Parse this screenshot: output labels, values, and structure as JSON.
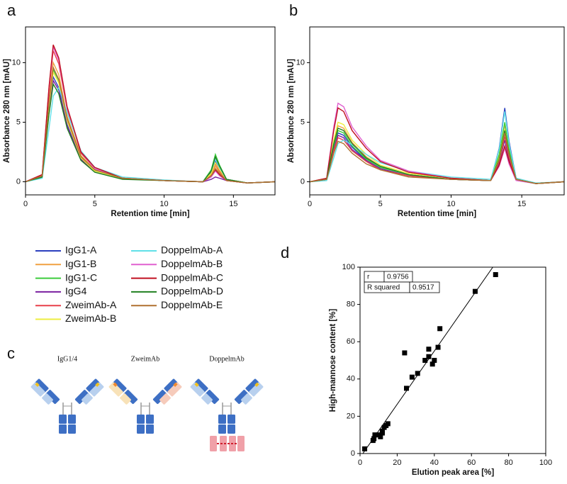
{
  "chart_data": [
    {
      "type": "line",
      "panel_label": "a",
      "x_label": "Retention time [min]",
      "y_label": "Absorbance 280 nm [mAU]",
      "xlim": [
        0,
        18
      ],
      "xticks": [
        0,
        5,
        10,
        15
      ],
      "ylim": [
        -1.1,
        13
      ],
      "yticks": [
        0,
        5,
        10
      ],
      "x": [
        0,
        1.2,
        1.7,
        2,
        2.4,
        3,
        4,
        5,
        7,
        10,
        12.8,
        13.4,
        13.7,
        14,
        14.5,
        16,
        18
      ],
      "series": [
        {
          "name": "IgG1-A",
          "color": "#2b3fbf",
          "values": [
            0,
            0.4,
            6.2,
            8.8,
            7.9,
            4.8,
            1.9,
            0.9,
            0.3,
            0.1,
            0,
            0.8,
            1.7,
            1.0,
            0.2,
            -0.1,
            0
          ]
        },
        {
          "name": "IgG1-B",
          "color": "#f0a040",
          "values": [
            0,
            0.5,
            7,
            10,
            9,
            5.5,
            2.2,
            1,
            0.3,
            0.1,
            0,
            0.6,
            1.3,
            0.8,
            0.1,
            -0.1,
            0
          ]
        },
        {
          "name": "IgG1-C",
          "color": "#3ccc3c",
          "values": [
            0,
            0.5,
            6.6,
            9.4,
            8.5,
            5.2,
            2.1,
            0.9,
            0.3,
            0.1,
            0,
            1.0,
            2.3,
            1.4,
            0.2,
            -0.1,
            0
          ]
        },
        {
          "name": "IgG4",
          "color": "#7a1fa0",
          "values": [
            0,
            0.4,
            6,
            8.5,
            7.7,
            4.7,
            1.9,
            0.9,
            0.3,
            0.1,
            0,
            0.2,
            0.4,
            0.3,
            0.1,
            -0.1,
            0
          ]
        },
        {
          "name": "ZweimAb-A",
          "color": "#e8404a",
          "values": [
            0,
            0.6,
            7.7,
            11,
            9.9,
            6.1,
            2.4,
            1.1,
            0.3,
            0.1,
            0,
            0.7,
            1.5,
            0.9,
            0.2,
            -0.1,
            0
          ]
        },
        {
          "name": "ZweimAb-B",
          "color": "#eeee40",
          "values": [
            0,
            0.5,
            6.4,
            9.2,
            8.3,
            5.1,
            2,
            0.9,
            0.3,
            0.1,
            0,
            0.7,
            1.6,
            1,
            0.2,
            -0.1,
            0
          ]
        },
        {
          "name": "DoppelmAb-A",
          "color": "#60e0e8",
          "values": [
            0,
            0.3,
            4.5,
            7.2,
            7.9,
            5.8,
            2.6,
            1.2,
            0.4,
            0.15,
            0,
            0.9,
            1.9,
            1.2,
            0.2,
            -0.1,
            0
          ]
        },
        {
          "name": "DoppelmAb-B",
          "color": "#e060d0",
          "values": [
            0,
            0.6,
            7.9,
            11.3,
            10.2,
            6.2,
            2.5,
            1.1,
            0.3,
            0.1,
            0,
            0.4,
            0.9,
            0.5,
            0.1,
            -0.1,
            0
          ]
        },
        {
          "name": "DoppelmAb-C",
          "color": "#c01020",
          "values": [
            0,
            0.6,
            8,
            11.5,
            10.4,
            6.3,
            2.5,
            1.2,
            0.3,
            0.1,
            0,
            0.5,
            1,
            0.6,
            0.1,
            -0.1,
            0
          ]
        },
        {
          "name": "DoppelmAb-D",
          "color": "#208020",
          "values": [
            0,
            0.4,
            5.7,
            8.2,
            7.4,
            4.5,
            1.8,
            0.8,
            0.2,
            0.1,
            0,
            0.9,
            2.1,
            1.3,
            0.2,
            -0.1,
            0
          ]
        },
        {
          "name": "DoppelmAb-E",
          "color": "#b07030",
          "values": [
            0,
            0.5,
            6.7,
            9.6,
            8.6,
            5.3,
            2.1,
            1,
            0.3,
            0.1,
            0,
            0.5,
            1.1,
            0.7,
            0.1,
            -0.1,
            0
          ]
        }
      ]
    },
    {
      "type": "line",
      "panel_label": "b",
      "x_label": "Retention time [min]",
      "y_label": "Absorbance 280 nm [mAU]",
      "xlim": [
        0,
        18
      ],
      "xticks": [
        0,
        5,
        10,
        15
      ],
      "ylim": [
        -1.1,
        13
      ],
      "yticks": [
        0,
        5,
        10
      ],
      "x": [
        0,
        1.2,
        1.7,
        2,
        2.4,
        3,
        4,
        5,
        7,
        10,
        12.8,
        13.4,
        13.8,
        14.1,
        14.6,
        16,
        18
      ],
      "series": [
        {
          "name": "IgG1-A",
          "color": "#2b3fbf",
          "values": [
            0,
            0.2,
            2.9,
            4.1,
            3.9,
            2.9,
            1.8,
            1.1,
            0.5,
            0.2,
            0.1,
            2.8,
            6.2,
            3.4,
            0.3,
            -0.15,
            0
          ]
        },
        {
          "name": "IgG1-B",
          "color": "#f0a040",
          "values": [
            0,
            0.2,
            3.3,
            4.7,
            4.5,
            3.3,
            2.1,
            1.3,
            0.6,
            0.2,
            0.1,
            2.2,
            4.8,
            2.6,
            0.2,
            -0.15,
            0
          ]
        },
        {
          "name": "IgG1-C",
          "color": "#3ccc3c",
          "values": [
            0,
            0.2,
            3,
            4.3,
            4.1,
            3,
            1.9,
            1.2,
            0.6,
            0.2,
            0.1,
            2.3,
            5.0,
            2.8,
            0.3,
            -0.15,
            0
          ]
        },
        {
          "name": "IgG4",
          "color": "#7a1fa0",
          "values": [
            0,
            0.2,
            2.7,
            3.9,
            3.7,
            2.7,
            1.8,
            1.1,
            0.5,
            0.2,
            0.1,
            1.6,
            3.5,
            1.9,
            0.2,
            -0.15,
            0
          ]
        },
        {
          "name": "ZweimAb-A",
          "color": "#e8404a",
          "values": [
            0,
            0.2,
            2.6,
            3.7,
            3.5,
            2.6,
            1.7,
            1,
            0.5,
            0.2,
            0.1,
            1.7,
            3.8,
            2.1,
            0.2,
            -0.15,
            0
          ]
        },
        {
          "name": "ZweimAb-B",
          "color": "#eeee40",
          "values": [
            0,
            0.3,
            3.5,
            5,
            4.8,
            3.5,
            2.3,
            1.4,
            0.7,
            0.3,
            0.1,
            2,
            4.4,
            2.4,
            0.2,
            -0.15,
            0
          ]
        },
        {
          "name": "DoppelmAb-A",
          "color": "#60e0e8",
          "values": [
            0,
            0.1,
            2,
            3.2,
            3.5,
            3.1,
            2.3,
            1.6,
            0.9,
            0.4,
            0.2,
            2.7,
            5.9,
            3.2,
            0.3,
            -0.1,
            0
          ]
        },
        {
          "name": "DoppelmAb-B",
          "color": "#e060d0",
          "values": [
            0,
            0.3,
            4.6,
            6.6,
            6.3,
            4.6,
            3,
            1.8,
            0.9,
            0.3,
            0.1,
            1.3,
            2.8,
            1.5,
            0.1,
            -0.15,
            0
          ]
        },
        {
          "name": "DoppelmAb-C",
          "color": "#c01020",
          "values": [
            0,
            0.3,
            4.3,
            6.2,
            5.9,
            4.3,
            2.8,
            1.7,
            0.8,
            0.3,
            0.1,
            1.4,
            3,
            1.7,
            0.2,
            -0.15,
            0
          ]
        },
        {
          "name": "DoppelmAb-D",
          "color": "#208020",
          "values": [
            0,
            0.2,
            3.2,
            4.5,
            4.3,
            3.2,
            2,
            1.3,
            0.6,
            0.2,
            0.1,
            1.9,
            4.3,
            2.4,
            0.2,
            -0.15,
            0
          ]
        },
        {
          "name": "DoppelmAb-E",
          "color": "#b07030",
          "values": [
            0,
            0.2,
            2.4,
            3.4,
            3.2,
            2.4,
            1.5,
            1,
            0.4,
            0.2,
            0.1,
            1.8,
            4.1,
            2.3,
            0.2,
            -0.15,
            0
          ]
        }
      ]
    },
    {
      "type": "scatter",
      "panel_label": "d",
      "x_label": "Elution peak area [%]",
      "y_label": "High-mannose content [%]",
      "xlim": [
        0,
        100
      ],
      "xticks": [
        0,
        20,
        40,
        60,
        80,
        100
      ],
      "ylim": [
        0,
        100
      ],
      "yticks": [
        0,
        20,
        40,
        60,
        80,
        100
      ],
      "color": "#000000",
      "x": [
        2.5,
        7,
        7.5,
        8,
        10,
        11,
        12,
        12,
        13,
        14,
        15,
        24,
        25,
        28,
        31,
        35,
        37,
        37,
        39,
        40,
        42,
        43,
        62,
        73
      ],
      "values": [
        2.5,
        7,
        8,
        10,
        10,
        9,
        12,
        11,
        14,
        15,
        16,
        54,
        35,
        41,
        43,
        50,
        52,
        56,
        48,
        50,
        57,
        67,
        87,
        96
      ],
      "fit_line": {
        "x": [
          1.5,
          71.5
        ],
        "y": [
          0,
          100
        ]
      },
      "stats": [
        [
          "r",
          0.9756
        ],
        [
          "R squared",
          0.9517
        ]
      ]
    }
  ],
  "diagram": {
    "panel_label": "c",
    "titles": [
      "IgG1/4",
      "ZweimAb",
      "DoppelmAb"
    ]
  }
}
